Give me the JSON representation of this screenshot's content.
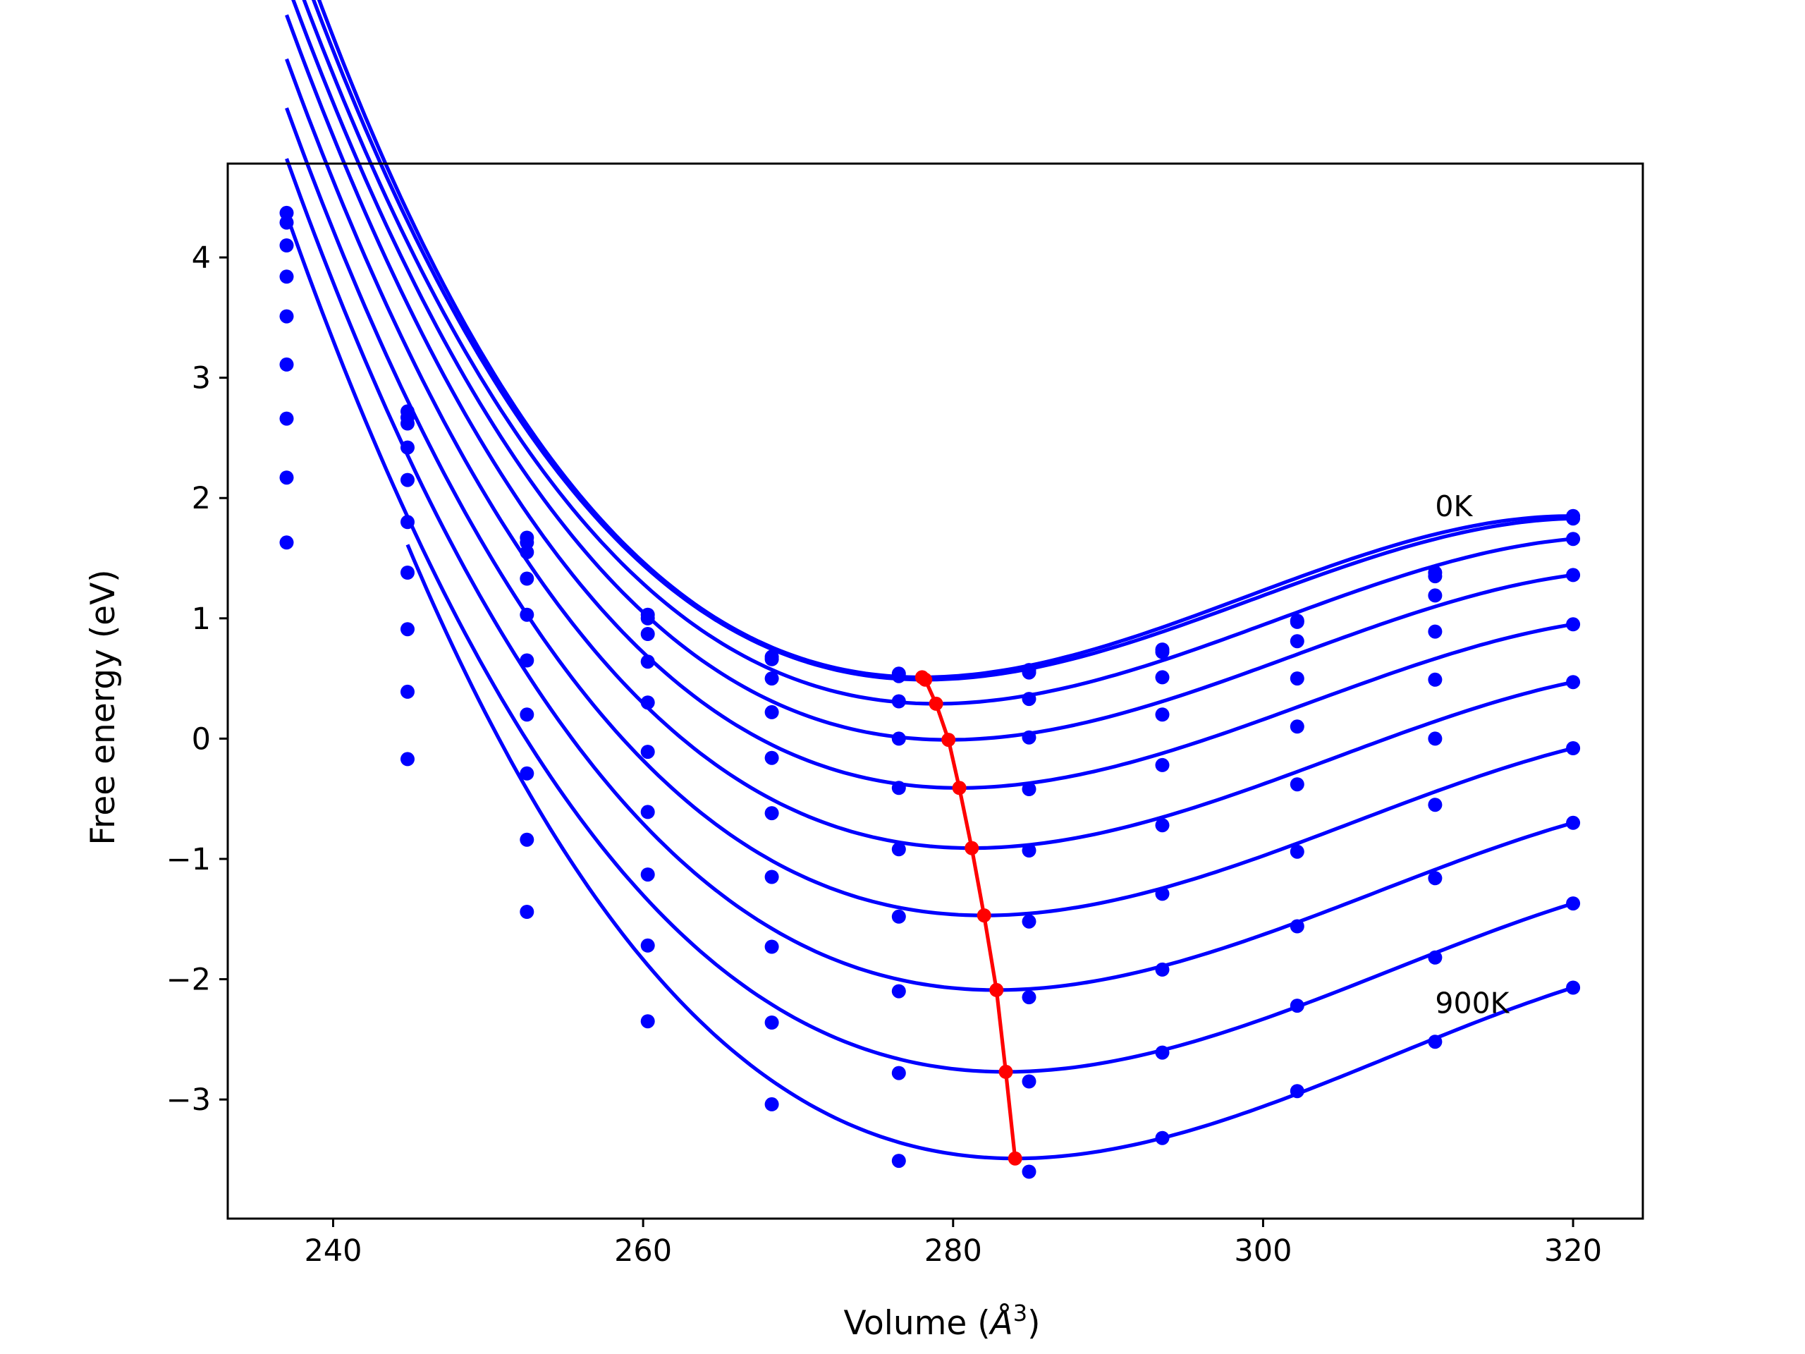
{
  "chart_data": {
    "type": "line",
    "title": "",
    "xlabel_main": "Volume (",
    "xlabel_unit": "Å",
    "xlabel_sup": "3",
    "xlabel_close": ")",
    "ylabel": "Free energy (eV)",
    "xlim": [
      233.2,
      324.5
    ],
    "ylim": [
      -3.99,
      4.78
    ],
    "xticks": [
      240,
      260,
      280,
      300,
      320
    ],
    "xtick_labels": [
      "240",
      "260",
      "280",
      "300",
      "320"
    ],
    "yticks": [
      -3,
      -2,
      -1,
      0,
      1,
      2,
      3,
      4
    ],
    "ytick_labels": [
      "−3",
      "−2",
      "−1",
      "0",
      "1",
      "2",
      "3",
      "4"
    ],
    "grid": false,
    "legend": "none",
    "colors": {
      "fit": "#0000ff",
      "points": "#0000ff",
      "minimum": "#ff0000",
      "axes": "#000000"
    },
    "annotations": [
      {
        "text": "0K",
        "x": 311.1,
        "y": 1.93
      },
      {
        "text": "900K",
        "x": 311.1,
        "y": -2.2
      }
    ],
    "x": [
      237.0,
      244.8,
      252.5,
      260.3,
      268.3,
      276.5,
      284.9,
      293.5,
      302.2,
      311.1,
      320.0
    ],
    "series": [
      {
        "points": [
          4.37,
          2.72,
          1.67,
          1.03,
          0.68,
          0.54,
          0.57,
          0.74,
          0.98,
          1.38,
          1.85
        ],
        "fit": {
          "min_x": 278.0,
          "min_y": 0.51
        }
      },
      {
        "points": [
          4.29,
          2.67,
          1.63,
          1.0,
          0.66,
          0.52,
          0.55,
          0.72,
          0.97,
          1.35,
          1.83
        ],
        "fit": {
          "min_x": 278.2,
          "min_y": 0.49
        }
      },
      {
        "points": [
          4.1,
          2.62,
          1.55,
          0.87,
          0.5,
          0.31,
          0.33,
          0.51,
          0.81,
          1.19,
          1.66
        ],
        "fit": {
          "min_x": 278.9,
          "min_y": 0.29
        }
      },
      {
        "points": [
          3.84,
          2.42,
          1.33,
          0.64,
          0.22,
          0.0,
          0.01,
          0.2,
          0.5,
          0.89,
          1.36
        ],
        "fit": {
          "min_x": 279.7,
          "min_y": -0.01
        }
      },
      {
        "points": [
          3.51,
          2.15,
          1.03,
          0.3,
          -0.16,
          -0.41,
          -0.42,
          -0.22,
          0.1,
          0.49,
          0.95
        ],
        "fit": {
          "min_x": 280.4,
          "min_y": -0.41
        }
      },
      {
        "points": [
          3.11,
          1.8,
          0.65,
          -0.11,
          -0.62,
          -0.92,
          -0.93,
          -0.72,
          -0.38,
          0.0,
          0.47
        ],
        "fit": {
          "min_x": 281.2,
          "min_y": -0.91
        }
      },
      {
        "points": [
          2.66,
          1.38,
          0.2,
          -0.61,
          -1.15,
          -1.48,
          -1.52,
          -1.29,
          -0.94,
          -0.55,
          -0.08
        ],
        "fit": {
          "min_x": 282.0,
          "min_y": -1.47
        }
      },
      {
        "points": [
          2.17,
          0.91,
          -0.29,
          -1.13,
          -1.73,
          -2.1,
          -2.15,
          -1.92,
          -1.56,
          -1.16,
          -0.7
        ],
        "fit": {
          "min_x": 282.8,
          "min_y": -2.09
        }
      },
      {
        "points": [
          1.63,
          0.39,
          -0.84,
          -1.72,
          -2.36,
          -2.78,
          -2.85,
          -2.61,
          -2.22,
          -1.82,
          -1.37
        ],
        "fit": {
          "min_x": 283.4,
          "min_y": -2.77
        }
      },
      {
        "points": [
          null,
          -0.17,
          -1.44,
          -2.35,
          -3.04,
          -3.51,
          -3.6,
          -3.32,
          -2.93,
          -2.52,
          -2.07
        ],
        "fit": {
          "min_x": 284.0,
          "min_y": -3.49
        }
      }
    ],
    "minimum_curve": {
      "x": [
        278.0,
        278.2,
        278.9,
        279.7,
        280.4,
        281.2,
        282.0,
        282.8,
        283.4,
        284.0
      ],
      "y": [
        0.51,
        0.49,
        0.29,
        -0.01,
        -0.41,
        -0.91,
        -1.47,
        -2.09,
        -2.77,
        -3.49
      ]
    }
  }
}
